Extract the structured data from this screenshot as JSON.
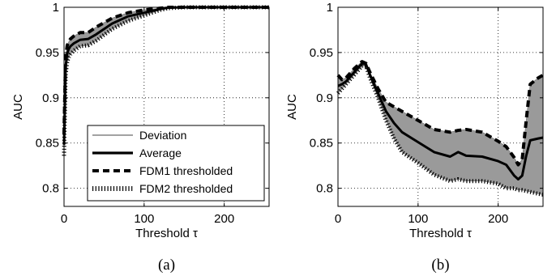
{
  "chart_data": [
    {
      "type": "line",
      "caption": "(a)",
      "xlabel": "Threshold τ",
      "ylabel": "AUC",
      "xlim": [
        0,
        256
      ],
      "ylim": [
        0.78,
        1.0
      ],
      "xticks": [
        0,
        100,
        200
      ],
      "xtick_labels": [
        "0",
        "100",
        "200"
      ],
      "yticks": [
        0.8,
        0.85,
        0.9,
        0.95,
        1.0
      ],
      "ytick_labels": [
        "0.8",
        "0.85",
        "0.9",
        "0.95",
        "1"
      ],
      "grid": true,
      "legend": {
        "placement": "bottom-right",
        "entries": [
          "Deviation",
          "Average",
          "FDM1 thresholded",
          "FDM2 thresholded"
        ]
      },
      "series": [
        {
          "name": "Deviation",
          "x": [
            0,
            2,
            4,
            6,
            8,
            12,
            20,
            30,
            40,
            60,
            80,
            100,
            120,
            130,
            150,
            200,
            256
          ],
          "upper": [
            0.86,
            0.945,
            0.958,
            0.962,
            0.965,
            0.968,
            0.972,
            0.972,
            0.978,
            0.988,
            0.994,
            0.997,
            0.999,
            1.0,
            1.0,
            1.0,
            1.0
          ],
          "lower": [
            0.836,
            0.925,
            0.94,
            0.945,
            0.948,
            0.952,
            0.957,
            0.958,
            0.963,
            0.976,
            0.985,
            0.991,
            0.997,
            0.999,
            1.0,
            1.0,
            1.0
          ]
        },
        {
          "name": "Average",
          "x": [
            0,
            2,
            4,
            6,
            8,
            12,
            20,
            30,
            40,
            60,
            80,
            100,
            120,
            130,
            150,
            200,
            256
          ],
          "values": [
            0.848,
            0.935,
            0.949,
            0.954,
            0.957,
            0.96,
            0.964,
            0.965,
            0.97,
            0.982,
            0.99,
            0.994,
            0.998,
            0.9995,
            1.0,
            1.0,
            1.0
          ]
        },
        {
          "name": "FDM1 thresholded",
          "x": [
            0,
            2,
            4,
            6,
            8,
            12,
            20,
            30,
            40,
            60,
            80,
            100,
            120,
            130,
            150,
            200,
            256
          ],
          "values": [
            0.86,
            0.945,
            0.958,
            0.962,
            0.965,
            0.968,
            0.972,
            0.972,
            0.978,
            0.988,
            0.994,
            0.997,
            0.999,
            1.0,
            1.0,
            1.0,
            1.0
          ]
        },
        {
          "name": "FDM2 thresholded",
          "x": [
            0,
            2,
            4,
            6,
            8,
            12,
            20,
            30,
            40,
            60,
            80,
            100,
            120,
            130,
            150,
            200,
            256
          ],
          "values": [
            0.836,
            0.925,
            0.94,
            0.945,
            0.948,
            0.952,
            0.957,
            0.958,
            0.963,
            0.976,
            0.985,
            0.991,
            0.997,
            0.999,
            1.0,
            1.0,
            1.0
          ]
        }
      ]
    },
    {
      "type": "line",
      "caption": "(b)",
      "xlabel": "Threshold τ",
      "ylabel": "AUC",
      "xlim": [
        0,
        256
      ],
      "ylim": [
        0.78,
        1.0
      ],
      "xticks": [
        0,
        100,
        200
      ],
      "xtick_labels": [
        "0",
        "100",
        "200"
      ],
      "yticks": [
        0.8,
        0.85,
        0.9,
        0.95,
        1.0
      ],
      "ytick_labels": [
        "0.8",
        "0.85",
        "0.9",
        "0.95",
        "1"
      ],
      "grid": true,
      "series": [
        {
          "name": "Deviation",
          "x": [
            0,
            5,
            10,
            20,
            30,
            35,
            40,
            50,
            60,
            70,
            80,
            100,
            120,
            140,
            150,
            160,
            180,
            200,
            210,
            220,
            225,
            230,
            235,
            240,
            250,
            256
          ],
          "upper": [
            0.925,
            0.92,
            0.922,
            0.932,
            0.94,
            0.938,
            0.928,
            0.91,
            0.895,
            0.89,
            0.885,
            0.875,
            0.865,
            0.862,
            0.864,
            0.865,
            0.862,
            0.852,
            0.846,
            0.834,
            0.826,
            0.832,
            0.875,
            0.915,
            0.922,
            0.925
          ],
          "lower": [
            0.905,
            0.91,
            0.915,
            0.925,
            0.935,
            0.935,
            0.922,
            0.9,
            0.875,
            0.855,
            0.84,
            0.828,
            0.815,
            0.808,
            0.81,
            0.808,
            0.808,
            0.805,
            0.8,
            0.8,
            0.798,
            0.798,
            0.797,
            0.796,
            0.794,
            0.793
          ]
        },
        {
          "name": "Average",
          "x": [
            0,
            5,
            10,
            20,
            30,
            35,
            40,
            50,
            60,
            70,
            80,
            100,
            120,
            140,
            150,
            160,
            180,
            200,
            210,
            220,
            225,
            230,
            235,
            240,
            250,
            256
          ],
          "values": [
            0.913,
            0.915,
            0.918,
            0.928,
            0.938,
            0.937,
            0.925,
            0.905,
            0.885,
            0.872,
            0.862,
            0.851,
            0.84,
            0.835,
            0.84,
            0.836,
            0.835,
            0.83,
            0.826,
            0.814,
            0.81,
            0.814,
            0.836,
            0.853,
            0.855,
            0.856
          ]
        },
        {
          "name": "FDM1 thresholded",
          "x": [
            0,
            5,
            10,
            20,
            30,
            35,
            40,
            50,
            60,
            70,
            80,
            100,
            120,
            140,
            150,
            160,
            180,
            200,
            210,
            220,
            225,
            230,
            235,
            240,
            250,
            256
          ],
          "values": [
            0.925,
            0.92,
            0.922,
            0.932,
            0.94,
            0.938,
            0.928,
            0.91,
            0.895,
            0.89,
            0.885,
            0.875,
            0.865,
            0.862,
            0.864,
            0.865,
            0.862,
            0.852,
            0.846,
            0.834,
            0.826,
            0.832,
            0.875,
            0.915,
            0.922,
            0.925
          ]
        },
        {
          "name": "FDM2 thresholded",
          "x": [
            0,
            5,
            10,
            20,
            30,
            35,
            40,
            50,
            60,
            70,
            80,
            100,
            120,
            140,
            150,
            160,
            180,
            200,
            210,
            220,
            225,
            230,
            235,
            240,
            250,
            256
          ],
          "values": [
            0.905,
            0.91,
            0.915,
            0.925,
            0.935,
            0.935,
            0.922,
            0.9,
            0.875,
            0.855,
            0.84,
            0.828,
            0.815,
            0.808,
            0.81,
            0.808,
            0.808,
            0.805,
            0.8,
            0.8,
            0.798,
            0.798,
            0.797,
            0.796,
            0.794,
            0.793
          ]
        }
      ]
    }
  ]
}
